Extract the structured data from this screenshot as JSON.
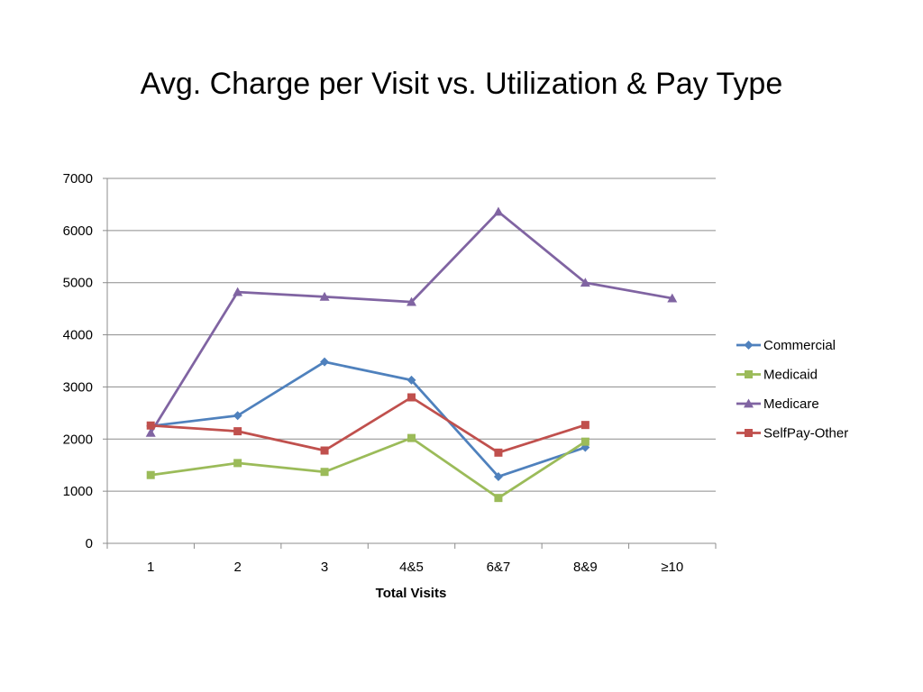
{
  "chart_data": {
    "type": "line",
    "title": "Avg. Charge per Visit vs. Utilization & Pay Type",
    "xlabel": "Total Visits",
    "ylabel": "",
    "categories": [
      "1",
      "2",
      "3",
      "4&5",
      "6&7",
      "8&9",
      "≥10"
    ],
    "ylim": [
      0,
      7000
    ],
    "yticks": [
      0,
      1000,
      2000,
      3000,
      4000,
      5000,
      6000,
      7000
    ],
    "grid": true,
    "legend_position": "right",
    "series": [
      {
        "name": "Commercial",
        "color": "#4F81BD",
        "marker": "diamond",
        "values": [
          2250,
          2450,
          3480,
          3130,
          1280,
          1840,
          null
        ]
      },
      {
        "name": "Medicaid",
        "color": "#9BBB59",
        "marker": "square",
        "values": [
          1310,
          1540,
          1370,
          2020,
          870,
          1950,
          null
        ]
      },
      {
        "name": "Medicare",
        "color": "#8064A2",
        "marker": "triangle",
        "values": [
          2120,
          4820,
          4730,
          4630,
          6360,
          5000,
          4700
        ]
      },
      {
        "name": "SelfPay-Other",
        "color": "#C0504D",
        "marker": "square",
        "values": [
          2260,
          2150,
          1780,
          2800,
          1740,
          2270,
          null
        ]
      }
    ]
  }
}
